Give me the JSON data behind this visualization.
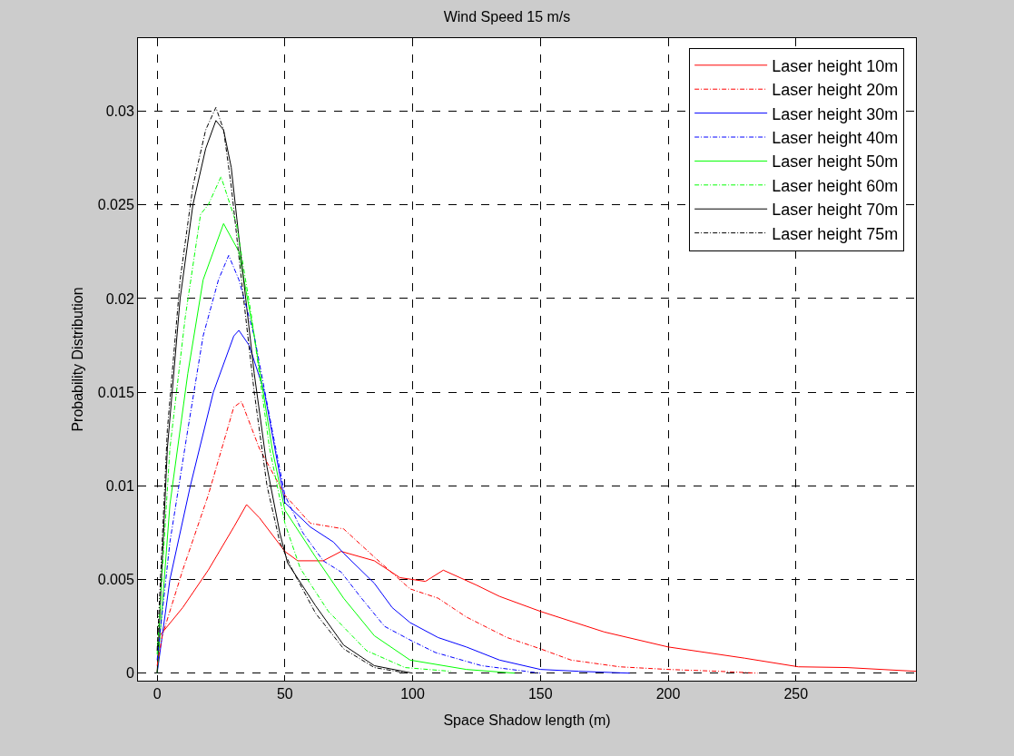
{
  "chart_data": {
    "type": "line",
    "title": "Wind Speed 15 m/s",
    "xlabel": "Space Shadow length (m)",
    "ylabel": "Probability Distribution",
    "xlim": [
      -7.5,
      297
    ],
    "ylim": [
      -0.0004,
      0.0339
    ],
    "xticks": [
      0,
      50,
      100,
      150,
      200,
      250
    ],
    "yticks": [
      0,
      0.005,
      0.01,
      0.015,
      0.02,
      0.025,
      0.03
    ],
    "grid": true,
    "legend": "top right",
    "series": [
      {
        "name": "Laser height 10m",
        "color": "#ff0000",
        "line_style": "solid",
        "x": [
          0,
          1,
          10,
          20,
          30,
          35,
          40,
          50,
          55,
          65,
          72,
          85,
          95,
          105,
          112,
          125,
          134,
          150,
          175,
          200,
          230,
          251,
          270,
          297
        ],
        "values": [
          0,
          0.002,
          0.0035,
          0.0055,
          0.0078,
          0.009,
          0.0083,
          0.0065,
          0.006,
          0.006,
          0.0065,
          0.006,
          0.0051,
          0.0049,
          0.0055,
          0.0047,
          0.0041,
          0.0033,
          0.0022,
          0.0014,
          0.0008,
          0.00034,
          0.0003,
          0.0001
        ]
      },
      {
        "name": "Laser height 20m",
        "color": "#ff0000",
        "line_style": "dashed",
        "x": [
          0,
          2,
          10,
          20,
          30,
          33,
          40,
          50,
          60,
          73,
          85,
          99,
          110,
          121,
          137,
          150,
          162,
          181,
          200,
          220,
          235
        ],
        "values": [
          0.0004,
          0.002,
          0.0055,
          0.0095,
          0.0142,
          0.0145,
          0.012,
          0.0095,
          0.008,
          0.0077,
          0.0062,
          0.0045,
          0.004,
          0.003,
          0.0019,
          0.0013,
          0.0007,
          0.00034,
          0.0002,
          0.0001,
          0
        ]
      },
      {
        "name": "Laser height 30m",
        "color": "#0000ff",
        "line_style": "solid",
        "x": [
          0,
          5,
          13,
          22,
          30,
          32,
          36,
          42,
          50,
          60,
          69,
          73,
          85,
          92,
          99,
          110,
          121,
          134,
          150,
          165,
          185
        ],
        "values": [
          0,
          0.005,
          0.01,
          0.015,
          0.018,
          0.0183,
          0.0175,
          0.015,
          0.0091,
          0.0078,
          0.007,
          0.0064,
          0.0048,
          0.0035,
          0.0027,
          0.0019,
          0.0014,
          0.0007,
          0.0002,
          0.0001,
          0
        ]
      },
      {
        "name": "Laser height 40m",
        "color": "#0000ff",
        "line_style": "dashed",
        "x": [
          0,
          5,
          12,
          18,
          24,
          28,
          32,
          38,
          45,
          50,
          57,
          65,
          72,
          80,
          89,
          100,
          109,
          127,
          150
        ],
        "values": [
          0.0007,
          0.007,
          0.013,
          0.018,
          0.021,
          0.0223,
          0.021,
          0.018,
          0.013,
          0.0095,
          0.0075,
          0.006,
          0.0054,
          0.004,
          0.0025,
          0.0017,
          0.0011,
          0.0004,
          0
        ]
      },
      {
        "name": "Laser height 50m",
        "color": "#00ff00",
        "line_style": "solid",
        "x": [
          0,
          5,
          12,
          18,
          26,
          32,
          38,
          45,
          50,
          62,
          73,
          85,
          99,
          121,
          140
        ],
        "values": [
          0,
          0.009,
          0.016,
          0.021,
          0.024,
          0.0225,
          0.018,
          0.012,
          0.0087,
          0.0062,
          0.004,
          0.002,
          0.0007,
          0.0002,
          0
        ]
      },
      {
        "name": "Laser height 60m",
        "color": "#00ff00",
        "line_style": "dashed",
        "x": [
          0,
          5,
          11,
          17,
          20,
          25,
          31,
          37,
          44,
          50,
          56,
          67,
          82,
          97,
          115
        ],
        "values": [
          0.001,
          0.012,
          0.019,
          0.0245,
          0.025,
          0.0265,
          0.024,
          0.019,
          0.012,
          0.008,
          0.0056,
          0.0033,
          0.0012,
          0.0003,
          0.0001
        ]
      },
      {
        "name": "Laser height 70m",
        "color": "#000000",
        "line_style": "solid",
        "x": [
          0,
          4,
          9,
          14,
          19,
          23,
          26,
          29,
          33,
          38,
          43,
          48,
          51,
          62,
          73,
          85,
          100
        ],
        "values": [
          0,
          0.012,
          0.02,
          0.025,
          0.028,
          0.0295,
          0.029,
          0.027,
          0.022,
          0.016,
          0.011,
          0.0075,
          0.0059,
          0.0036,
          0.0015,
          0.0004,
          0
        ]
      },
      {
        "name": "Laser height 75m",
        "color": "#000000",
        "line_style": "dashed",
        "x": [
          0,
          4,
          9,
          14,
          19,
          23,
          26,
          29,
          33,
          38,
          43,
          48,
          53,
          62,
          73,
          85,
          98
        ],
        "values": [
          0.0012,
          0.013,
          0.021,
          0.026,
          0.029,
          0.0302,
          0.029,
          0.026,
          0.021,
          0.015,
          0.01,
          0.007,
          0.0055,
          0.0032,
          0.0013,
          0.0003,
          0
        ]
      }
    ]
  }
}
